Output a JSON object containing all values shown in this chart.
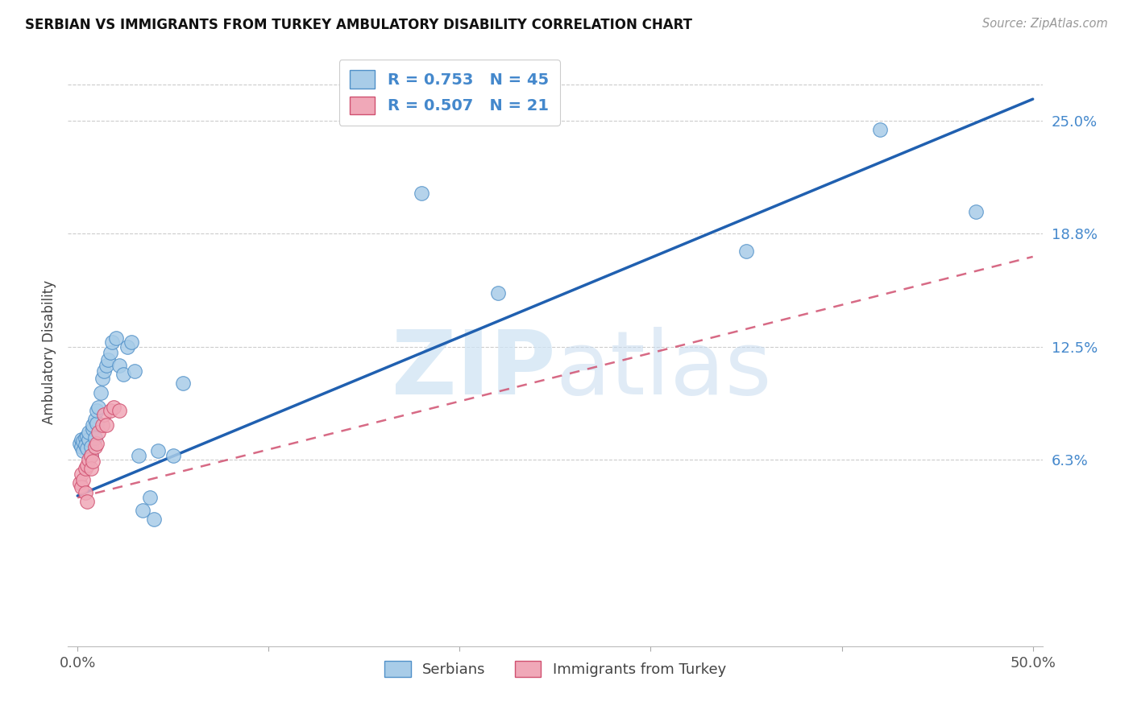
{
  "title": "SERBIAN VS IMMIGRANTS FROM TURKEY AMBULATORY DISABILITY CORRELATION CHART",
  "source": "Source: ZipAtlas.com",
  "ylabel": "Ambulatory Disability",
  "xlim": [
    -0.005,
    0.505
  ],
  "ylim": [
    -0.04,
    0.285
  ],
  "ytick_positions": [
    0.063,
    0.125,
    0.188,
    0.25
  ],
  "ytick_labels": [
    "6.3%",
    "12.5%",
    "18.8%",
    "25.0%"
  ],
  "xtick_positions": [
    0.0,
    0.1,
    0.2,
    0.3,
    0.4,
    0.5
  ],
  "xtick_labels": [
    "0.0%",
    "",
    "",
    "",
    "",
    "50.0%"
  ],
  "serbian_color": "#a8cce8",
  "serbian_edge": "#5090c8",
  "turkey_color": "#f0a8b8",
  "turkey_edge": "#d05070",
  "legend_R_serbian": "R = 0.753",
  "legend_N_serbian": "N = 45",
  "legend_R_turkey": "R = 0.507",
  "legend_N_turkey": "N = 21",
  "background_color": "#ffffff",
  "grid_color": "#cccccc",
  "serbian_line_color": "#2060b0",
  "turkey_line_color": "#d05070",
  "serbian_x": [
    0.001,
    0.002,
    0.002,
    0.003,
    0.003,
    0.004,
    0.004,
    0.005,
    0.005,
    0.006,
    0.006,
    0.007,
    0.007,
    0.008,
    0.008,
    0.009,
    0.009,
    0.01,
    0.01,
    0.011,
    0.012,
    0.013,
    0.014,
    0.015,
    0.016,
    0.017,
    0.018,
    0.02,
    0.022,
    0.024,
    0.026,
    0.028,
    0.03,
    0.032,
    0.034,
    0.038,
    0.04,
    0.042,
    0.05,
    0.055,
    0.18,
    0.22,
    0.35,
    0.42,
    0.47
  ],
  "serbian_y": [
    0.072,
    0.074,
    0.07,
    0.068,
    0.073,
    0.075,
    0.071,
    0.069,
    0.076,
    0.074,
    0.078,
    0.065,
    0.07,
    0.08,
    0.082,
    0.085,
    0.075,
    0.083,
    0.09,
    0.092,
    0.1,
    0.108,
    0.112,
    0.115,
    0.118,
    0.122,
    0.128,
    0.13,
    0.115,
    0.11,
    0.125,
    0.128,
    0.112,
    0.065,
    0.035,
    0.042,
    0.03,
    0.068,
    0.065,
    0.105,
    0.21,
    0.155,
    0.178,
    0.245,
    0.2
  ],
  "turkey_x": [
    0.001,
    0.002,
    0.002,
    0.003,
    0.004,
    0.004,
    0.005,
    0.005,
    0.006,
    0.007,
    0.007,
    0.008,
    0.009,
    0.01,
    0.011,
    0.013,
    0.014,
    0.015,
    0.017,
    0.019,
    0.022
  ],
  "turkey_y": [
    0.05,
    0.055,
    0.048,
    0.052,
    0.058,
    0.045,
    0.06,
    0.04,
    0.063,
    0.065,
    0.058,
    0.062,
    0.07,
    0.072,
    0.078,
    0.082,
    0.088,
    0.082,
    0.09,
    0.092,
    0.09
  ],
  "serbian_line_x0": 0.0,
  "serbian_line_y0": 0.043,
  "serbian_line_x1": 0.5,
  "serbian_line_y1": 0.262,
  "turkey_line_x0": 0.0,
  "turkey_line_y0": 0.042,
  "turkey_line_x1": 0.5,
  "turkey_line_y1": 0.175
}
